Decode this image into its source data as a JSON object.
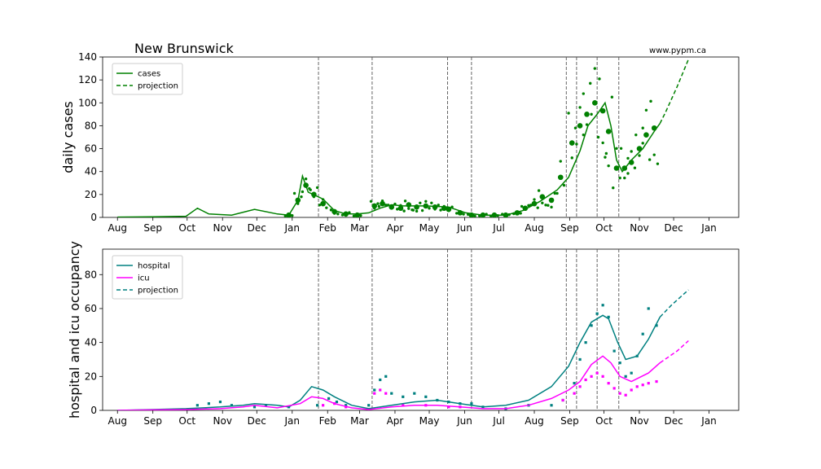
{
  "title": "New Brunswick",
  "source": "www.pypm.ca",
  "colors": {
    "cases": "#008000",
    "hospital": "#008080",
    "icu": "#ff00ff",
    "vline": "#555555"
  },
  "month_ticks": [
    "Aug",
    "Sep",
    "Oct",
    "Nov",
    "Dec",
    "Jan",
    "Feb",
    "Mar",
    "Apr",
    "May",
    "Jun",
    "Jul",
    "Aug",
    "Sep",
    "Oct",
    "Nov",
    "Dec",
    "Jan"
  ],
  "chart_data": [
    {
      "type": "line",
      "ylabel": "daily cases",
      "ylim": [
        0,
        140
      ],
      "yticks": [
        0,
        20,
        40,
        60,
        80,
        100,
        120,
        140
      ],
      "xlim": [
        -13,
        544
      ],
      "legend": {
        "placement": "top-left",
        "entries": [
          "cases",
          "projection"
        ]
      },
      "intervention_days": [
        176,
        223,
        289,
        310,
        393,
        402,
        420,
        439
      ],
      "series": [
        {
          "name": "cases",
          "style": "solid",
          "color": "#008000",
          "points": [
            [
              0,
              0.3
            ],
            [
              30,
              0.5
            ],
            [
              60,
              1
            ],
            [
              70,
              8
            ],
            [
              80,
              3
            ],
            [
              100,
              2
            ],
            [
              120,
              7
            ],
            [
              140,
              3
            ],
            [
              150,
              2
            ],
            [
              158,
              15
            ],
            [
              162,
              36
            ],
            [
              167,
              22
            ],
            [
              180,
              16
            ],
            [
              190,
              6
            ],
            [
              200,
              3
            ],
            [
              210,
              3
            ],
            [
              220,
              4
            ],
            [
              230,
              8
            ],
            [
              240,
              11
            ],
            [
              250,
              10
            ],
            [
              270,
              10
            ],
            [
              290,
              9
            ],
            [
              305,
              4
            ],
            [
              320,
              2
            ],
            [
              340,
              2
            ],
            [
              355,
              6
            ],
            [
              370,
              14
            ],
            [
              385,
              24
            ],
            [
              395,
              35
            ],
            [
              405,
              58
            ],
            [
              412,
              80
            ],
            [
              420,
              90
            ],
            [
              427,
              100
            ],
            [
              432,
              80
            ],
            [
              437,
              50
            ],
            [
              442,
              40
            ],
            [
              450,
              50
            ],
            [
              460,
              60
            ],
            [
              470,
              75
            ],
            [
              475,
              82
            ]
          ]
        },
        {
          "name": "projection",
          "style": "dashed",
          "color": "#008000",
          "points": [
            [
              475,
              82
            ],
            [
              480,
              92
            ],
            [
              490,
              114
            ],
            [
              500,
              138
            ]
          ]
        }
      ],
      "weekly_markers": [
        [
          150,
          2
        ],
        [
          158,
          15
        ],
        [
          165,
          28
        ],
        [
          172,
          20
        ],
        [
          180,
          12
        ],
        [
          190,
          5
        ],
        [
          200,
          3
        ],
        [
          210,
          2
        ],
        [
          225,
          10
        ],
        [
          232,
          12
        ],
        [
          240,
          9
        ],
        [
          248,
          8
        ],
        [
          255,
          11
        ],
        [
          262,
          9
        ],
        [
          270,
          10
        ],
        [
          278,
          9
        ],
        [
          286,
          8
        ],
        [
          290,
          7
        ],
        [
          300,
          4
        ],
        [
          310,
          2
        ],
        [
          320,
          2
        ],
        [
          330,
          2
        ],
        [
          340,
          2
        ],
        [
          350,
          4
        ],
        [
          357,
          8
        ],
        [
          365,
          12
        ],
        [
          372,
          18
        ],
        [
          380,
          15
        ],
        [
          388,
          35
        ],
        [
          398,
          65
        ],
        [
          405,
          80
        ],
        [
          411,
          90
        ],
        [
          418,
          100
        ],
        [
          425,
          93
        ],
        [
          430,
          75
        ],
        [
          437,
          43
        ],
        [
          444,
          43
        ],
        [
          450,
          48
        ],
        [
          457,
          60
        ],
        [
          463,
          72
        ],
        [
          470,
          78
        ]
      ],
      "scatter_note": "daily reported cases shown as small dots"
    },
    {
      "type": "line",
      "ylabel": "hospital and icu occupancy",
      "ylim": [
        0,
        95
      ],
      "yticks": [
        0,
        20,
        40,
        60,
        80
      ],
      "xlim": [
        -13,
        544
      ],
      "legend": {
        "placement": "top-left",
        "entries": [
          "hospital",
          "icu",
          "projection"
        ]
      },
      "intervention_days": [
        176,
        223,
        289,
        310,
        393,
        402,
        420,
        439
      ],
      "series": [
        {
          "name": "hospital",
          "style": "solid",
          "color": "#008080",
          "points": [
            [
              0,
              0
            ],
            [
              30,
              0.5
            ],
            [
              60,
              1
            ],
            [
              90,
              2
            ],
            [
              110,
              3
            ],
            [
              120,
              4
            ],
            [
              140,
              3
            ],
            [
              150,
              2
            ],
            [
              160,
              6
            ],
            [
              170,
              14
            ],
            [
              180,
              12
            ],
            [
              190,
              8
            ],
            [
              205,
              3
            ],
            [
              220,
              1
            ],
            [
              240,
              3
            ],
            [
              260,
              5
            ],
            [
              280,
              6
            ],
            [
              300,
              4
            ],
            [
              320,
              2
            ],
            [
              340,
              3
            ],
            [
              360,
              6
            ],
            [
              380,
              14
            ],
            [
              395,
              26
            ],
            [
              405,
              40
            ],
            [
              415,
              52
            ],
            [
              425,
              56
            ],
            [
              430,
              54
            ],
            [
              438,
              40
            ],
            [
              445,
              30
            ],
            [
              455,
              32
            ],
            [
              465,
              42
            ],
            [
              475,
              55
            ]
          ]
        },
        {
          "name": "icu",
          "style": "solid",
          "color": "#ff00ff",
          "points": [
            [
              0,
              0
            ],
            [
              30,
              0.3
            ],
            [
              60,
              0.5
            ],
            [
              90,
              1
            ],
            [
              110,
              2
            ],
            [
              120,
              3
            ],
            [
              140,
              1.5
            ],
            [
              160,
              4
            ],
            [
              170,
              8
            ],
            [
              180,
              7
            ],
            [
              190,
              4
            ],
            [
              205,
              1.5
            ],
            [
              220,
              0.5
            ],
            [
              240,
              2
            ],
            [
              260,
              3
            ],
            [
              280,
              3
            ],
            [
              300,
              2
            ],
            [
              320,
              1
            ],
            [
              340,
              1
            ],
            [
              360,
              3
            ],
            [
              380,
              7
            ],
            [
              395,
              12
            ],
            [
              405,
              17
            ],
            [
              415,
              27
            ],
            [
              425,
              32
            ],
            [
              432,
              28
            ],
            [
              440,
              20
            ],
            [
              450,
              17
            ],
            [
              465,
              22
            ],
            [
              475,
              28
            ]
          ]
        },
        {
          "name": "projection",
          "style": "dashed",
          "color": "#008080",
          "points": [
            [
              475,
              55
            ],
            [
              485,
              62
            ],
            [
              500,
              71
            ]
          ]
        },
        {
          "name": "icu projection",
          "style": "dashed",
          "color": "#ff00ff",
          "points": [
            [
              475,
              28
            ],
            [
              490,
              35
            ],
            [
              500,
              41
            ]
          ]
        }
      ],
      "hospital_dots": [
        [
          70,
          3
        ],
        [
          80,
          4
        ],
        [
          90,
          5
        ],
        [
          100,
          3
        ],
        [
          120,
          2
        ],
        [
          130,
          3
        ],
        [
          150,
          2
        ],
        [
          175,
          3
        ],
        [
          185,
          7
        ],
        [
          192,
          5
        ],
        [
          200,
          3
        ],
        [
          220,
          3
        ],
        [
          225,
          12
        ],
        [
          230,
          18
        ],
        [
          235,
          20
        ],
        [
          240,
          10
        ],
        [
          250,
          8
        ],
        [
          260,
          10
        ],
        [
          270,
          8
        ],
        [
          280,
          6
        ],
        [
          290,
          5
        ],
        [
          300,
          4
        ],
        [
          310,
          4
        ],
        [
          320,
          2
        ],
        [
          340,
          1
        ],
        [
          360,
          3
        ],
        [
          380,
          3
        ],
        [
          390,
          6
        ],
        [
          400,
          16
        ],
        [
          405,
          30
        ],
        [
          410,
          40
        ],
        [
          415,
          50
        ],
        [
          420,
          57
        ],
        [
          425,
          62
        ],
        [
          430,
          55
        ],
        [
          435,
          35
        ],
        [
          440,
          28
        ],
        [
          445,
          20
        ],
        [
          450,
          22
        ],
        [
          455,
          32
        ],
        [
          460,
          45
        ],
        [
          465,
          60
        ],
        [
          472,
          50
        ]
      ],
      "icu_dots": [
        [
          180,
          3
        ],
        [
          190,
          4
        ],
        [
          200,
          2
        ],
        [
          225,
          10
        ],
        [
          230,
          12
        ],
        [
          235,
          10
        ],
        [
          250,
          3
        ],
        [
          270,
          3
        ],
        [
          290,
          2
        ],
        [
          300,
          2
        ],
        [
          390,
          6
        ],
        [
          400,
          10
        ],
        [
          405,
          14
        ],
        [
          410,
          18
        ],
        [
          415,
          20
        ],
        [
          420,
          22
        ],
        [
          425,
          20
        ],
        [
          430,
          16
        ],
        [
          435,
          13
        ],
        [
          440,
          10
        ],
        [
          445,
          9
        ],
        [
          450,
          12
        ],
        [
          455,
          14
        ],
        [
          460,
          15
        ],
        [
          465,
          16
        ],
        [
          472,
          17
        ]
      ]
    }
  ]
}
